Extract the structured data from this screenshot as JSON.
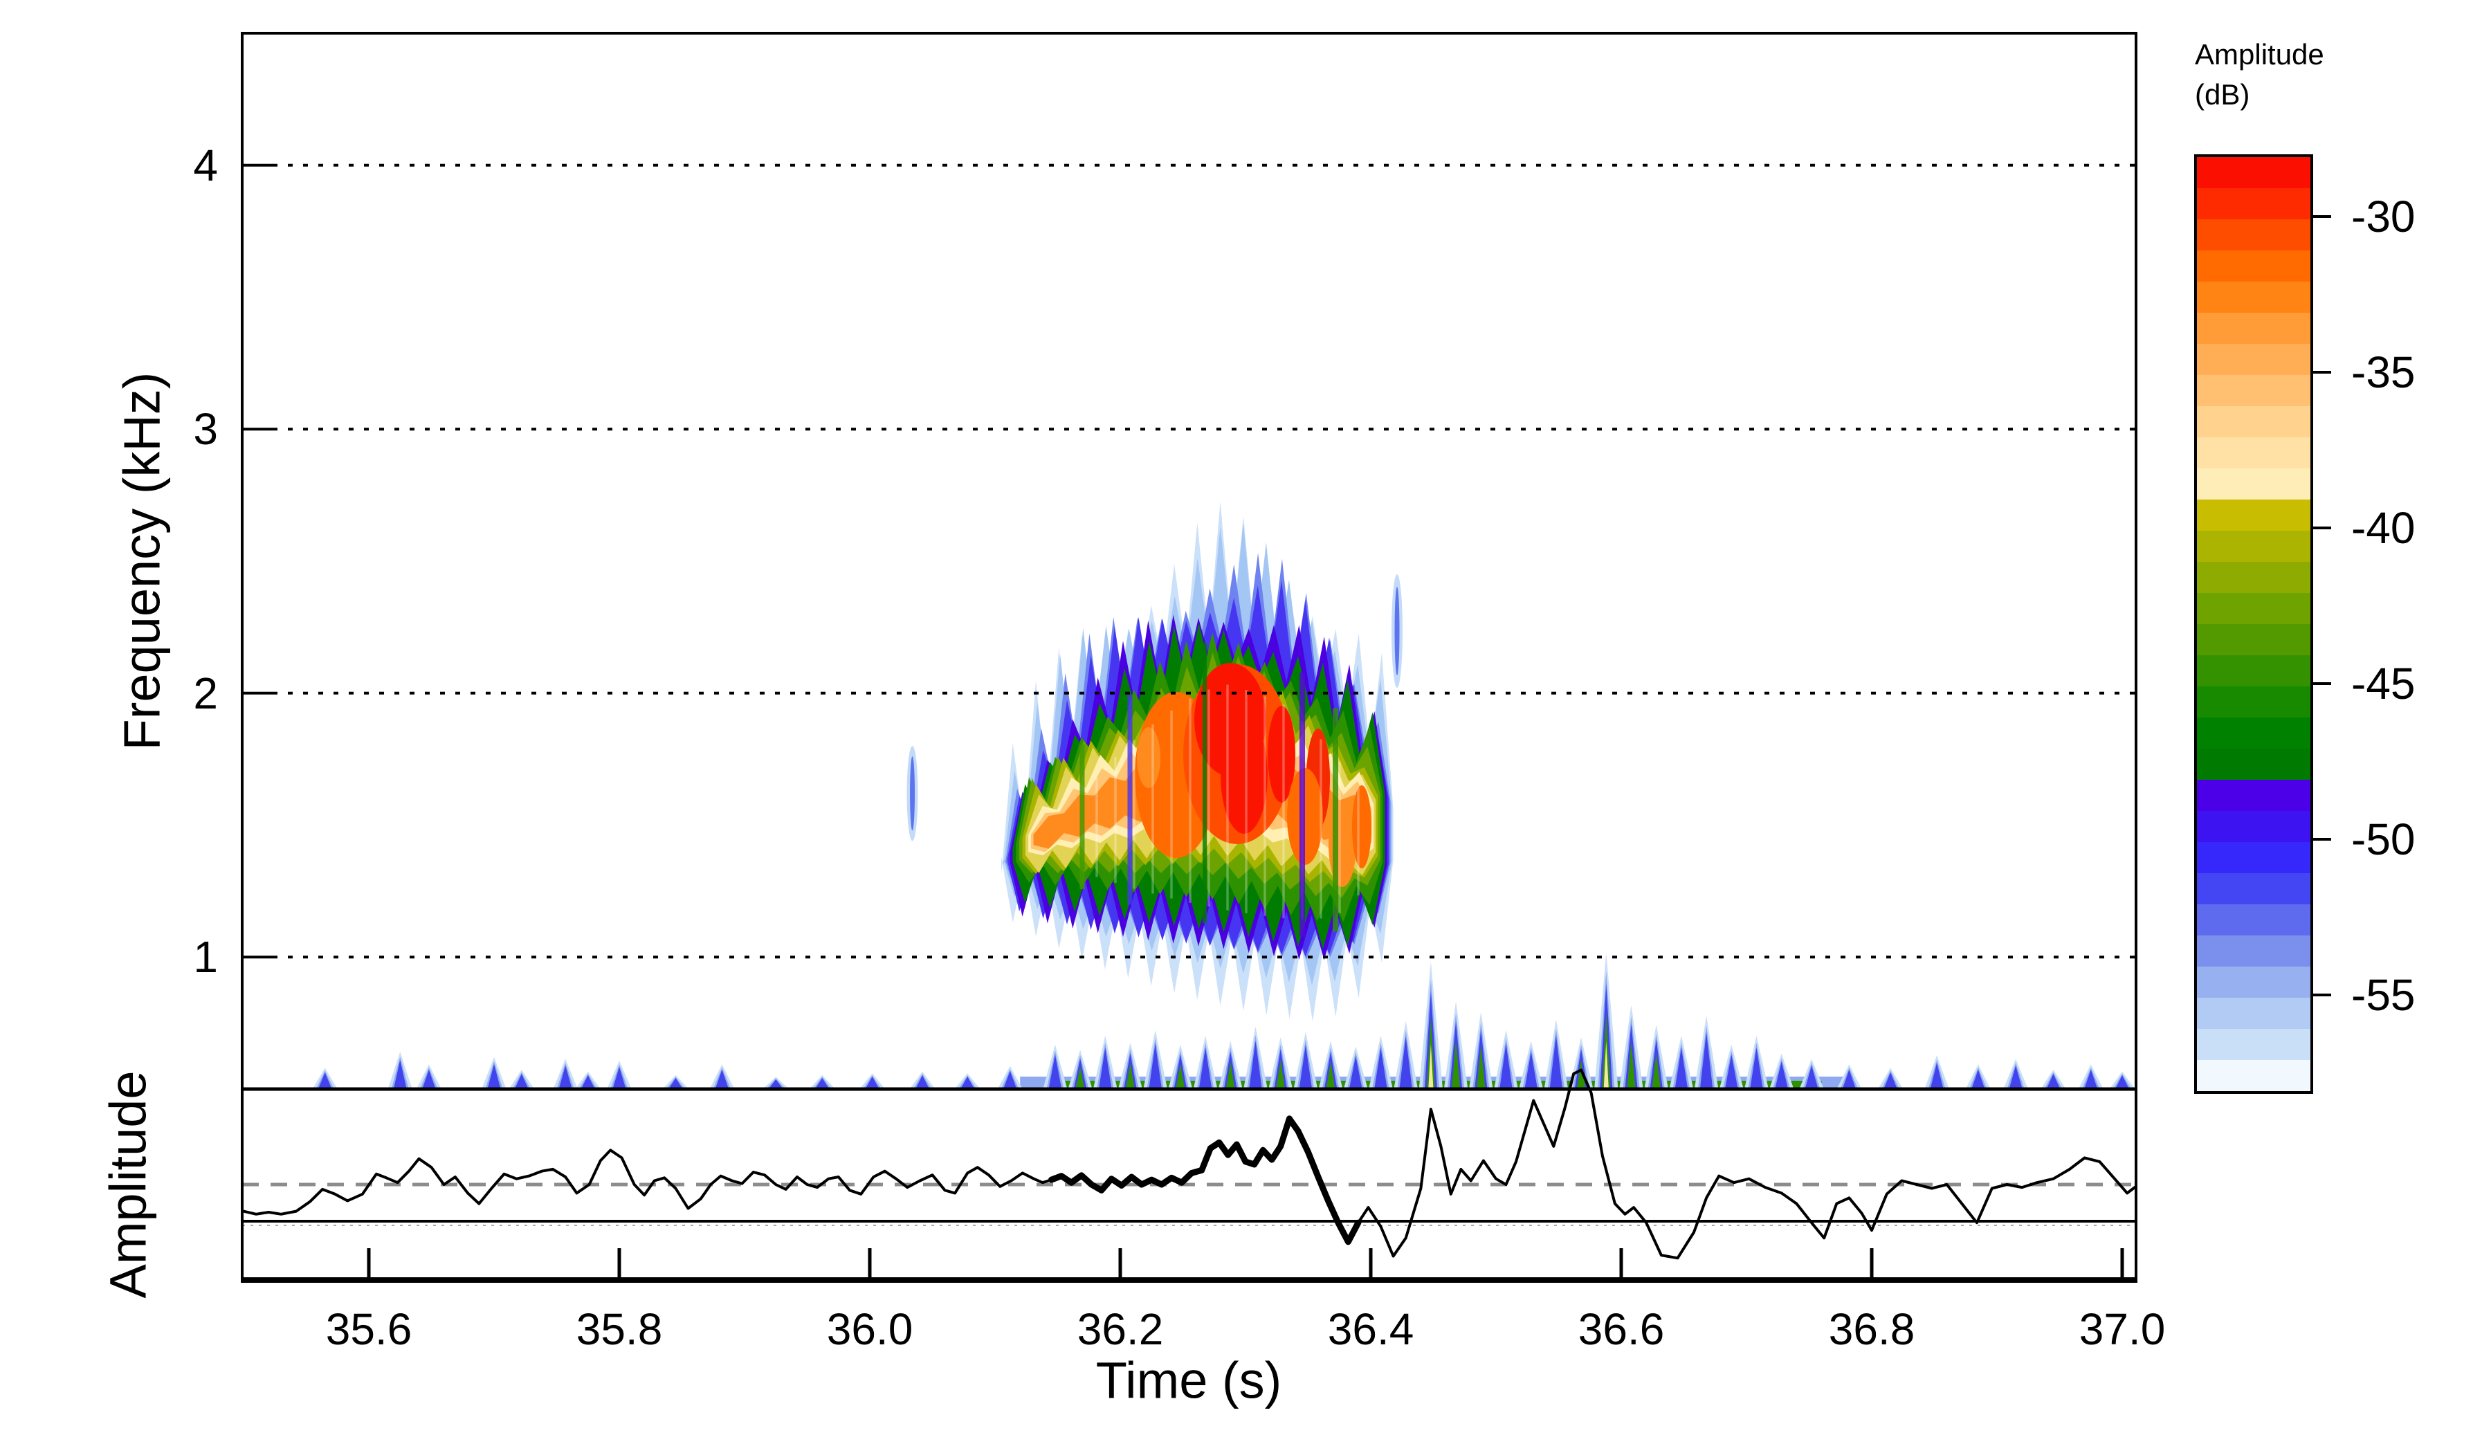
{
  "figure": {
    "background": "#FFFFFF",
    "frame_color": "#000000"
  },
  "axes": {
    "freq_label": "Frequency (kHz)",
    "amp_label": "Amplitude",
    "time_label": "Time (s)",
    "x_tick_values": [
      35.6,
      35.8,
      36.0,
      36.2,
      36.4,
      36.6,
      36.8,
      37.0
    ],
    "x_tick_labels": [
      "35.6",
      "35.8",
      "36.0",
      "36.2",
      "36.4",
      "36.6",
      "36.8",
      "37.0"
    ],
    "y_tick_values": [
      1,
      2,
      3,
      4
    ],
    "y_tick_labels": [
      "1",
      "2",
      "3",
      "4"
    ],
    "x_range_s": [
      35.5,
      37.013
    ],
    "freq_range_khz": [
      0.5,
      4.5
    ],
    "gridlines": "dotted horizontal black lines at 1,2,3,4 kHz"
  },
  "legend": {
    "title_line1": "Amplitude",
    "title_line2": "(dB)",
    "ticks": [
      -30,
      -35,
      -40,
      -45,
      -50,
      -55
    ],
    "range_db_top_to_bottom": [
      -28,
      -58
    ],
    "band_colors": [
      "#FA0F00",
      "#FF2B00",
      "#FF4D00",
      "#FF6B00",
      "#FF8414",
      "#FF9C37",
      "#FFAE55",
      "#FFC071",
      "#FFD28E",
      "#FFE0A5",
      "#FFEDB8",
      "#C8BD00",
      "#ABB400",
      "#8DAB00",
      "#6FA300",
      "#529A00",
      "#349200",
      "#178A00",
      "#008200",
      "#007A00",
      "#4C00E8",
      "#3D13F1",
      "#3627FA",
      "#4446F4",
      "#5F6BEF",
      "#7B90ED",
      "#97B0F0",
      "#B1CBF4",
      "#C9DFF8",
      "#F2F9FE"
    ]
  },
  "chart_data": [
    {
      "type": "heatmap",
      "name": "spectrogram",
      "title": "",
      "xlabel": "Time (s)",
      "ylabel": "Frequency (kHz)",
      "x_range": [
        35.5,
        37.013
      ],
      "y_range": [
        0.5,
        4.5
      ],
      "x_ticks": [
        35.6,
        35.8,
        36.0,
        36.2,
        36.4,
        36.6,
        36.8,
        37.0
      ],
      "y_ticks": [
        1,
        2,
        3,
        4
      ],
      "colorbar": {
        "title": "Amplitude (dB)",
        "range": [
          -58,
          -28
        ],
        "ticks": [
          -55,
          -50,
          -45,
          -40,
          -35,
          -30
        ]
      },
      "main_call": {
        "time_range_s": [
          36.105,
          36.418
        ],
        "freq_range_khz": [
          1.25,
          2.55
        ],
        "peak_freq_khz": 2.0,
        "peak_time_s": 36.29,
        "peak_amplitude_db": -28,
        "description": "single bird call; layered contour blob, red core near 2 kHz at 36.25-36.35 s"
      },
      "slivers": [
        {
          "t": 36.034,
          "f_low": 1.44,
          "f_high": 1.8
        },
        {
          "t": 36.421,
          "f_low": 2.02,
          "f_high": 2.45
        }
      ],
      "noise_band": {
        "freq_range_khz": [
          0.5,
          0.9
        ],
        "description": "low-frequency background noise spikes along bottom edge",
        "spikes": [
          [
            35.565,
            22,
            "b"
          ],
          [
            35.625,
            40,
            "b"
          ],
          [
            35.648,
            26,
            "b"
          ],
          [
            35.7,
            34,
            "b"
          ],
          [
            35.722,
            20,
            "b"
          ],
          [
            35.757,
            32,
            "b"
          ],
          [
            35.775,
            18,
            "b"
          ],
          [
            35.8,
            30,
            "b"
          ],
          [
            35.845,
            14,
            "b"
          ],
          [
            35.882,
            26,
            "b"
          ],
          [
            35.925,
            12,
            "b"
          ],
          [
            35.962,
            14,
            "b"
          ],
          [
            36.002,
            16,
            "b"
          ],
          [
            36.042,
            18,
            "b"
          ],
          [
            36.078,
            16,
            "b"
          ],
          [
            36.112,
            24,
            "b"
          ],
          [
            36.148,
            48,
            "b"
          ],
          [
            36.168,
            42,
            "g"
          ],
          [
            36.188,
            58,
            "b"
          ],
          [
            36.208,
            50,
            "g"
          ],
          [
            36.228,
            64,
            "b"
          ],
          [
            36.248,
            48,
            "g"
          ],
          [
            36.268,
            58,
            "b"
          ],
          [
            36.288,
            52,
            "g"
          ],
          [
            36.308,
            68,
            "b"
          ],
          [
            36.328,
            56,
            "g"
          ],
          [
            36.348,
            62,
            "b"
          ],
          [
            36.368,
            52,
            "g"
          ],
          [
            36.388,
            46,
            "b"
          ],
          [
            36.408,
            58,
            "b"
          ],
          [
            36.428,
            74,
            "b"
          ],
          [
            36.448,
            140,
            "y"
          ],
          [
            36.468,
            96,
            "g"
          ],
          [
            36.488,
            84,
            "g"
          ],
          [
            36.508,
            64,
            "b"
          ],
          [
            36.528,
            52,
            "b"
          ],
          [
            36.548,
            76,
            "b"
          ],
          [
            36.568,
            56,
            "g"
          ],
          [
            36.588,
            150,
            "y"
          ],
          [
            36.608,
            92,
            "g"
          ],
          [
            36.628,
            70,
            "g"
          ],
          [
            36.648,
            58,
            "b"
          ],
          [
            36.668,
            80,
            "b"
          ],
          [
            36.688,
            48,
            "b"
          ],
          [
            36.708,
            58,
            "b"
          ],
          [
            36.728,
            38,
            "b"
          ],
          [
            36.752,
            32,
            "b"
          ],
          [
            36.782,
            26,
            "b"
          ],
          [
            36.815,
            22,
            "b"
          ],
          [
            36.852,
            36,
            "b"
          ],
          [
            36.885,
            26,
            "b"
          ],
          [
            36.915,
            32,
            "b"
          ],
          [
            36.945,
            20,
            "b"
          ],
          [
            36.975,
            26,
            "b"
          ],
          [
            37.0,
            18,
            "b"
          ]
        ]
      }
    },
    {
      "type": "line",
      "name": "oscillogram",
      "ylabel": "Amplitude",
      "x_range": [
        35.5,
        37.013
      ],
      "bold_segment_s": [
        36.145,
        36.392
      ],
      "dashed_reference_line_frac": 0.5,
      "solid_reference_line_frac": 0.692,
      "dashed_line_color": "#8C8C8C",
      "points": [
        [
          35.5,
          0.64
        ],
        [
          35.51,
          0.655
        ],
        [
          35.52,
          0.645
        ],
        [
          35.53,
          0.655
        ],
        [
          35.542,
          0.64
        ],
        [
          35.553,
          0.59
        ],
        [
          35.563,
          0.525
        ],
        [
          35.573,
          0.55
        ],
        [
          35.583,
          0.585
        ],
        [
          35.595,
          0.55
        ],
        [
          35.606,
          0.445
        ],
        [
          35.614,
          0.465
        ],
        [
          35.623,
          0.49
        ],
        [
          35.632,
          0.43
        ],
        [
          35.64,
          0.365
        ],
        [
          35.65,
          0.41
        ],
        [
          35.66,
          0.5
        ],
        [
          35.669,
          0.46
        ],
        [
          35.679,
          0.545
        ],
        [
          35.688,
          0.6
        ],
        [
          35.698,
          0.52
        ],
        [
          35.708,
          0.445
        ],
        [
          35.718,
          0.47
        ],
        [
          35.728,
          0.455
        ],
        [
          35.738,
          0.43
        ],
        [
          35.747,
          0.42
        ],
        [
          35.757,
          0.46
        ],
        [
          35.766,
          0.545
        ],
        [
          35.776,
          0.5
        ],
        [
          35.785,
          0.375
        ],
        [
          35.793,
          0.32
        ],
        [
          35.802,
          0.36
        ],
        [
          35.812,
          0.5
        ],
        [
          35.82,
          0.555
        ],
        [
          35.828,
          0.48
        ],
        [
          35.836,
          0.465
        ],
        [
          35.845,
          0.52
        ],
        [
          35.855,
          0.625
        ],
        [
          35.865,
          0.575
        ],
        [
          35.873,
          0.5
        ],
        [
          35.881,
          0.455
        ],
        [
          35.89,
          0.48
        ],
        [
          35.898,
          0.495
        ],
        [
          35.907,
          0.435
        ],
        [
          35.916,
          0.45
        ],
        [
          35.925,
          0.5
        ],
        [
          35.933,
          0.525
        ],
        [
          35.942,
          0.46
        ],
        [
          35.95,
          0.5
        ],
        [
          35.958,
          0.515
        ],
        [
          35.967,
          0.47
        ],
        [
          35.975,
          0.46
        ],
        [
          35.984,
          0.53
        ],
        [
          35.993,
          0.55
        ],
        [
          36.003,
          0.46
        ],
        [
          36.012,
          0.43
        ],
        [
          36.021,
          0.47
        ],
        [
          36.03,
          0.515
        ],
        [
          36.04,
          0.48
        ],
        [
          36.05,
          0.45
        ],
        [
          36.06,
          0.53
        ],
        [
          36.068,
          0.545
        ],
        [
          36.078,
          0.44
        ],
        [
          36.086,
          0.41
        ],
        [
          36.095,
          0.45
        ],
        [
          36.104,
          0.51
        ],
        [
          36.113,
          0.48
        ],
        [
          36.122,
          0.44
        ],
        [
          36.131,
          0.47
        ],
        [
          36.138,
          0.49
        ],
        [
          36.145,
          0.475
        ],
        [
          36.153,
          0.455
        ],
        [
          36.161,
          0.49
        ],
        [
          36.169,
          0.452
        ],
        [
          36.177,
          0.5
        ],
        [
          36.185,
          0.53
        ],
        [
          36.193,
          0.47
        ],
        [
          36.201,
          0.505
        ],
        [
          36.209,
          0.46
        ],
        [
          36.217,
          0.5
        ],
        [
          36.225,
          0.475
        ],
        [
          36.233,
          0.5
        ],
        [
          36.241,
          0.465
        ],
        [
          36.249,
          0.49
        ],
        [
          36.257,
          0.44
        ],
        [
          36.265,
          0.425
        ],
        [
          36.272,
          0.31
        ],
        [
          36.279,
          0.28
        ],
        [
          36.286,
          0.345
        ],
        [
          36.293,
          0.29
        ],
        [
          36.3,
          0.38
        ],
        [
          36.307,
          0.395
        ],
        [
          36.314,
          0.32
        ],
        [
          36.321,
          0.37
        ],
        [
          36.328,
          0.3
        ],
        [
          36.335,
          0.155
        ],
        [
          36.342,
          0.22
        ],
        [
          36.35,
          0.33
        ],
        [
          36.358,
          0.46
        ],
        [
          36.366,
          0.585
        ],
        [
          36.374,
          0.7
        ],
        [
          36.382,
          0.8
        ],
        [
          36.39,
          0.7
        ],
        [
          36.398,
          0.62
        ],
        [
          36.408,
          0.72
        ],
        [
          36.418,
          0.875
        ],
        [
          36.428,
          0.78
        ],
        [
          36.44,
          0.52
        ],
        [
          36.448,
          0.105
        ],
        [
          36.456,
          0.3
        ],
        [
          36.464,
          0.55
        ],
        [
          36.472,
          0.42
        ],
        [
          36.48,
          0.48
        ],
        [
          36.49,
          0.375
        ],
        [
          36.5,
          0.47
        ],
        [
          36.508,
          0.5
        ],
        [
          36.516,
          0.38
        ],
        [
          36.53,
          0.06
        ],
        [
          36.538,
          0.18
        ],
        [
          36.546,
          0.3
        ],
        [
          36.555,
          0.1
        ],
        [
          36.562,
          -0.08
        ],
        [
          36.568,
          -0.1
        ],
        [
          36.576,
          0.02
        ],
        [
          36.585,
          0.35
        ],
        [
          36.595,
          0.6
        ],
        [
          36.603,
          0.655
        ],
        [
          36.61,
          0.62
        ],
        [
          36.62,
          0.7
        ],
        [
          36.632,
          0.87
        ],
        [
          36.645,
          0.885
        ],
        [
          36.658,
          0.75
        ],
        [
          36.668,
          0.57
        ],
        [
          36.678,
          0.455
        ],
        [
          36.69,
          0.49
        ],
        [
          36.702,
          0.47
        ],
        [
          36.715,
          0.515
        ],
        [
          36.728,
          0.545
        ],
        [
          36.74,
          0.6
        ],
        [
          36.752,
          0.7
        ],
        [
          36.762,
          0.78
        ],
        [
          36.772,
          0.6
        ],
        [
          36.782,
          0.57
        ],
        [
          36.792,
          0.65
        ],
        [
          36.8,
          0.74
        ],
        [
          36.812,
          0.55
        ],
        [
          36.824,
          0.48
        ],
        [
          36.836,
          0.5
        ],
        [
          36.848,
          0.52
        ],
        [
          36.86,
          0.5
        ],
        [
          36.872,
          0.6
        ],
        [
          36.884,
          0.7
        ],
        [
          36.896,
          0.52
        ],
        [
          36.908,
          0.5
        ],
        [
          36.92,
          0.515
        ],
        [
          36.932,
          0.49
        ],
        [
          36.945,
          0.47
        ],
        [
          36.958,
          0.42
        ],
        [
          36.97,
          0.36
        ],
        [
          36.982,
          0.38
        ],
        [
          36.994,
          0.47
        ],
        [
          37.004,
          0.545
        ],
        [
          37.013,
          0.5
        ]
      ]
    }
  ]
}
